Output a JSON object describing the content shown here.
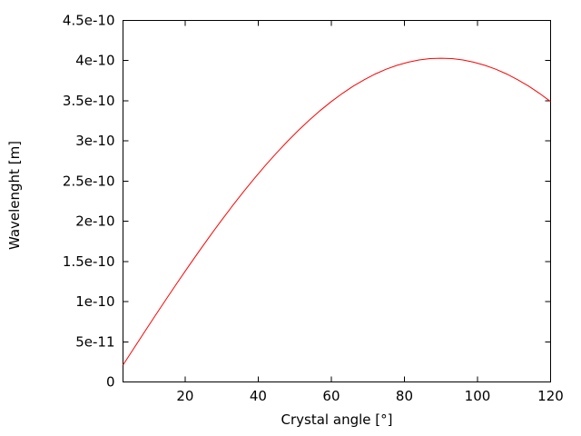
{
  "chart_data": {
    "type": "line",
    "title": "",
    "xlabel": "Crystal angle [°]",
    "ylabel": "Wavelenght [m]",
    "xlim": [
      3,
      120
    ],
    "ylim": [
      0,
      4.5e-10
    ],
    "x_ticks": {
      "values": [
        20,
        40,
        60,
        80,
        100,
        120
      ],
      "labels": [
        "20",
        "40",
        "60",
        "80",
        "100",
        "120"
      ]
    },
    "y_ticks": {
      "values": [
        0,
        5e-11,
        1e-10,
        1.5e-10,
        2e-10,
        2.5e-10,
        3e-10,
        3.5e-10,
        4e-10,
        4.5e-10
      ],
      "labels": [
        "0",
        "5e-11",
        "1e-10",
        "1.5e-10",
        "2e-10",
        "2.5e-10",
        "3e-10",
        "3.5e-10",
        "4e-10",
        "4.5e-10"
      ]
    },
    "grid": false,
    "legend": "none",
    "tick_style": "inward, mirrored on all four borders",
    "colors": {
      "curve": "#ff0000",
      "axis": "#000000",
      "background": "#ffffff"
    },
    "series": [
      {
        "name": "wavelength-vs-crystal-angle",
        "color": "#ff0000",
        "x": [
          3,
          6,
          9,
          12,
          15,
          18,
          21,
          24,
          27,
          30,
          33,
          36,
          39,
          42,
          45,
          48,
          51,
          54,
          57,
          60,
          63,
          66,
          69,
          72,
          75,
          78,
          81,
          84,
          87,
          90,
          93,
          96,
          99,
          102,
          105,
          108,
          111,
          114,
          117,
          120
        ],
        "y": [
          2.11e-11,
          4.21e-11,
          6.3e-11,
          8.38e-11,
          1.043e-10,
          1.245e-10,
          1.444e-10,
          1.639e-10,
          1.83e-10,
          2.015e-10,
          2.195e-10,
          2.369e-10,
          2.536e-10,
          2.697e-10,
          2.85e-10,
          2.995e-10,
          3.132e-10,
          3.26e-10,
          3.38e-10,
          3.49e-10,
          3.591e-10,
          3.682e-10,
          3.762e-10,
          3.833e-10,
          3.893e-10,
          3.942e-10,
          3.98e-10,
          4.008e-10,
          4.025e-10,
          4.03e-10,
          4.025e-10,
          4.008e-10,
          3.98e-10,
          3.942e-10,
          3.893e-10,
          3.833e-10,
          3.762e-10,
          3.682e-10,
          3.591e-10,
          3.49e-10
        ]
      }
    ]
  }
}
